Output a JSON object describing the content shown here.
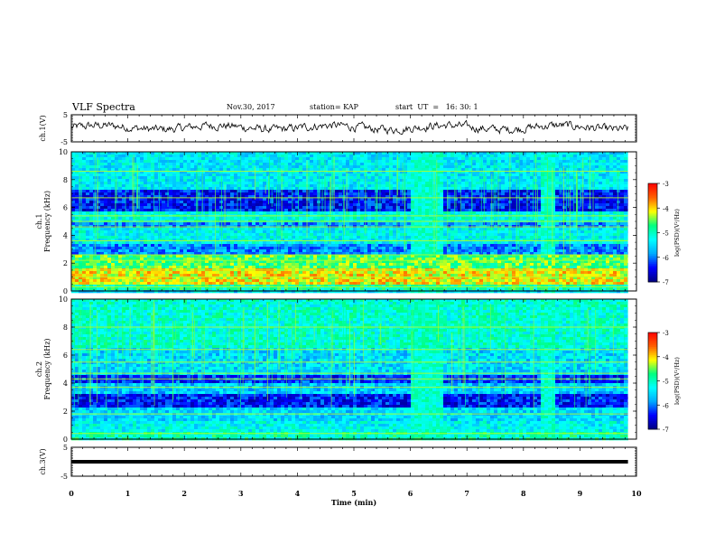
{
  "header": {
    "title": "VLF Spectra",
    "date": "Nov.30, 2017",
    "station": "station= KAP",
    "start_time": "start  UT  =   16: 30: 1"
  },
  "colors": {
    "colormap": [
      "#000080",
      "#0000ff",
      "#00aaff",
      "#00ffff",
      "#00ff80",
      "#ffff00",
      "#ff6000",
      "#ff0000",
      "#ffffff"
    ],
    "waveform": "#000000",
    "axes": "#000000"
  },
  "chart_data": [
    {
      "type": "line",
      "id": "ch1-waveform",
      "ylabel": "ch.1(V)",
      "ylim": [
        -5,
        5
      ],
      "yticks": [
        "5",
        "-5"
      ],
      "xlim": [
        0,
        10
      ],
      "series_mean": 0.3,
      "series_amplitude": 1.5
    },
    {
      "type": "heatmap",
      "id": "ch1-spectrogram",
      "ylabel": "ch.1\nFrequency (kHz)",
      "yticks": [
        "0",
        "2",
        "4",
        "6",
        "8",
        "10"
      ],
      "ylim": [
        0,
        10
      ],
      "xlim": [
        0,
        10
      ],
      "data_end_min": 9.85,
      "colorbar": {
        "label": "log(PSD)(V²/Hz)",
        "ticks": [
          "-3",
          "-4",
          "-5",
          "-6",
          "-7"
        ],
        "range": [
          -7,
          -3
        ]
      },
      "band_levels": [
        {
          "f_lo": 0.0,
          "f_hi": 0.4,
          "level": -4.9
        },
        {
          "f_lo": 0.4,
          "f_hi": 1.6,
          "level": -4.1
        },
        {
          "f_lo": 1.6,
          "f_hi": 2.6,
          "level": -4.6
        },
        {
          "f_lo": 2.6,
          "f_hi": 3.4,
          "level": -5.9
        },
        {
          "f_lo": 3.4,
          "f_hi": 4.5,
          "level": -5.3
        },
        {
          "f_lo": 4.5,
          "f_hi": 5.0,
          "level": -5.9
        },
        {
          "f_lo": 5.0,
          "f_hi": 5.8,
          "level": -5.2
        },
        {
          "f_lo": 5.8,
          "f_hi": 7.2,
          "level": -6.4
        },
        {
          "f_lo": 7.2,
          "f_hi": 10.0,
          "level": -5.4
        }
      ],
      "line_freqs_khz": [
        0.3,
        1.0,
        1.5,
        2.2,
        2.6,
        3.6,
        4.6,
        5.0,
        5.4,
        6.7,
        8.6
      ],
      "bursts_min": [
        {
          "start": 6.0,
          "end": 6.55
        },
        {
          "start": 8.25,
          "end": 8.5
        }
      ]
    },
    {
      "type": "heatmap",
      "id": "ch2-spectrogram",
      "ylabel": "ch.2\nFrequency (kHz)",
      "yticks": [
        "0",
        "2",
        "4",
        "6",
        "8",
        "10"
      ],
      "ylim": [
        0,
        10
      ],
      "xlim": [
        0,
        10
      ],
      "data_end_min": 9.85,
      "colorbar": {
        "label": "log(PSD)(V²/Hz)",
        "ticks": [
          "-3",
          "-4",
          "-5",
          "-6",
          "-7"
        ],
        "range": [
          -7,
          -3
        ]
      },
      "band_levels": [
        {
          "f_lo": 0.0,
          "f_hi": 0.5,
          "level": -5.0
        },
        {
          "f_lo": 0.5,
          "f_hi": 1.2,
          "level": -5.3
        },
        {
          "f_lo": 1.2,
          "f_hi": 2.2,
          "level": -5.5
        },
        {
          "f_lo": 2.2,
          "f_hi": 3.3,
          "level": -6.4
        },
        {
          "f_lo": 3.3,
          "f_hi": 4.0,
          "level": -5.6
        },
        {
          "f_lo": 4.0,
          "f_hi": 4.6,
          "level": -6.3
        },
        {
          "f_lo": 4.6,
          "f_hi": 6.5,
          "level": -5.5
        },
        {
          "f_lo": 6.5,
          "f_hi": 10.0,
          "level": -5.1
        }
      ],
      "line_freqs_khz": [
        0.4,
        1.8,
        3.7,
        4.3,
        4.7,
        5.5,
        6.4,
        8.0
      ],
      "bursts_min": [
        {
          "start": 6.0,
          "end": 6.55
        },
        {
          "start": 8.25,
          "end": 8.5
        }
      ]
    },
    {
      "type": "line",
      "id": "ch3-waveform",
      "ylabel": "ch.3(V)",
      "ylim": [
        -5,
        5
      ],
      "yticks": [
        "5",
        "-5"
      ],
      "xlim": [
        0,
        10
      ],
      "xlabel": "Time (min)",
      "xticks": [
        "0",
        "1",
        "2",
        "3",
        "4",
        "5",
        "6",
        "7",
        "8",
        "9",
        "10"
      ],
      "series_constant": 0
    }
  ]
}
